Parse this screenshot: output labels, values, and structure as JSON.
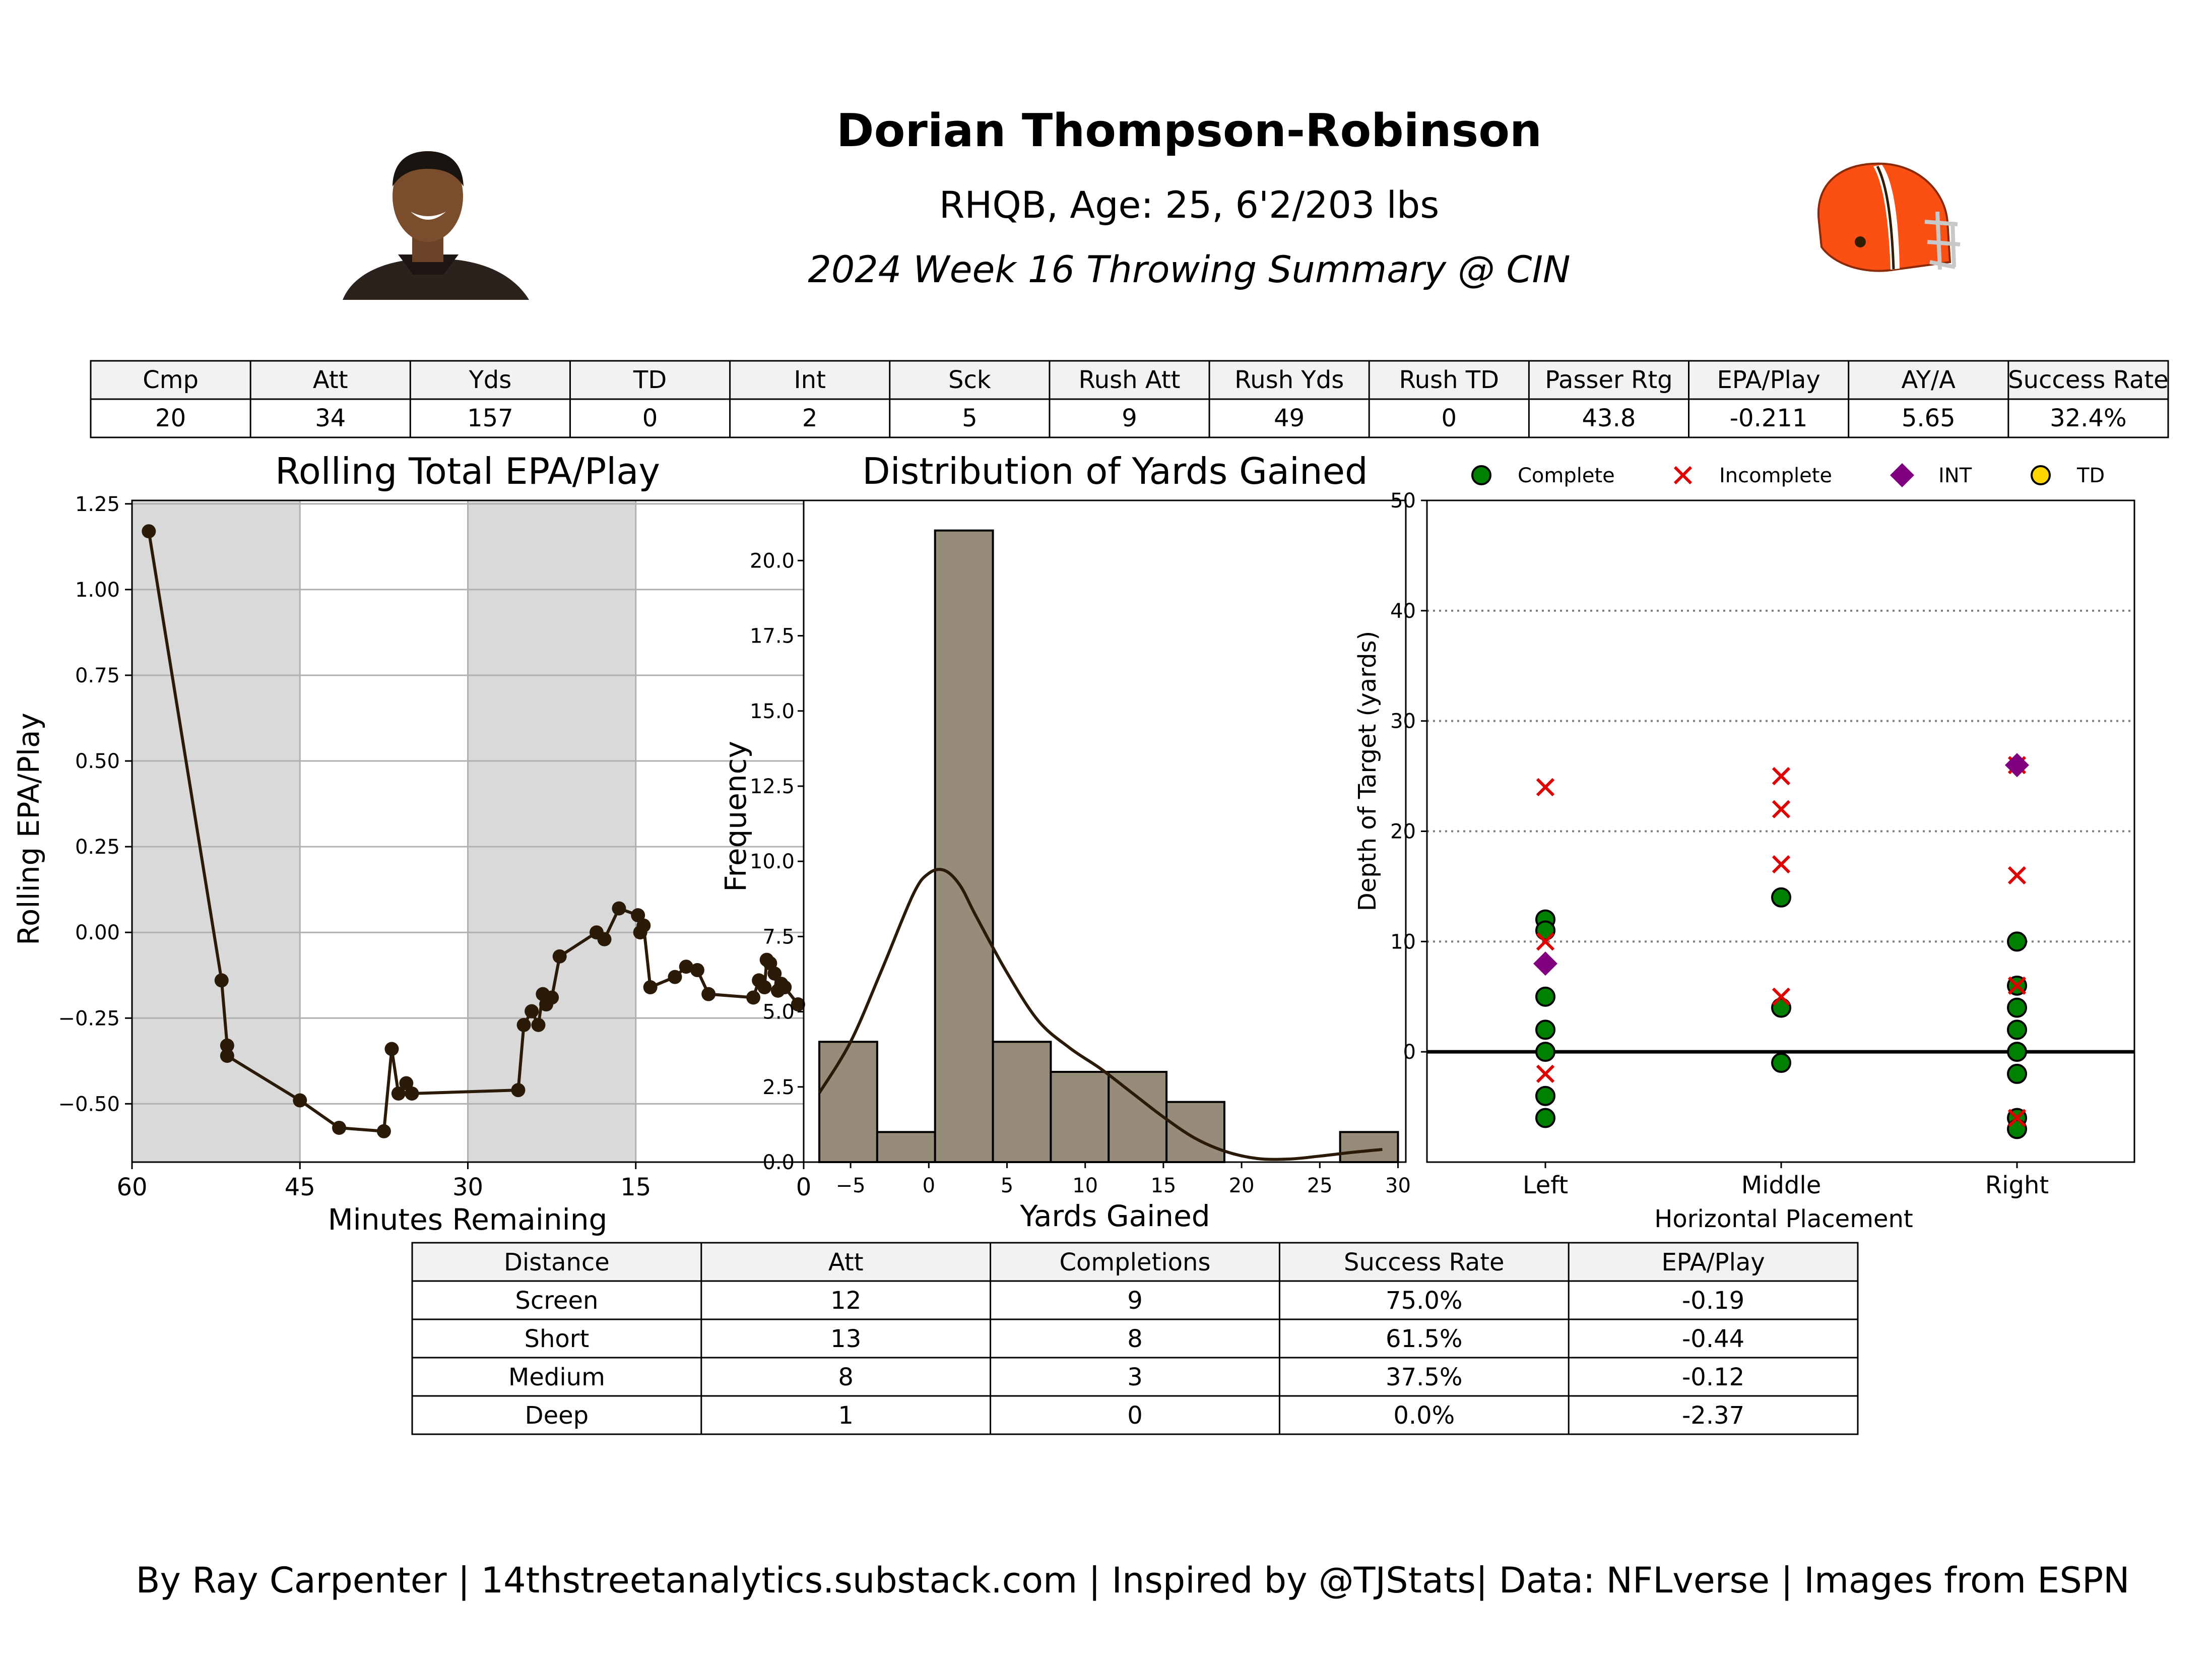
{
  "header": {
    "name": "Dorian Thompson-Robinson",
    "bio": "RHQB, Age: 25, 6'2/203 lbs",
    "subtitle": "2024 Week 16 Throwing Summary @ CIN"
  },
  "stats_table": {
    "headers": [
      "Cmp",
      "Att",
      "Yds",
      "TD",
      "Int",
      "Sck",
      "Rush Att",
      "Rush Yds",
      "Rush TD",
      "Passer Rtg",
      "EPA/Play",
      "AY/A",
      "Success Rate"
    ],
    "values": [
      "20",
      "34",
      "157",
      "0",
      "2",
      "5",
      "9",
      "49",
      "0",
      "43.8",
      "-0.211",
      "5.65",
      "32.4%"
    ]
  },
  "distance_table": {
    "headers": [
      "Distance",
      "Att",
      "Completions",
      "Success Rate",
      "EPA/Play"
    ],
    "rows": [
      [
        "Screen",
        "12",
        "9",
        "75.0%",
        "-0.19"
      ],
      [
        "Short",
        "13",
        "8",
        "61.5%",
        "-0.44"
      ],
      [
        "Medium",
        "8",
        "3",
        "37.5%",
        "-0.12"
      ],
      [
        "Deep",
        "1",
        "0",
        "0.0%",
        "-2.37"
      ]
    ]
  },
  "footer": "By Ray Carpenter | 14thstreetanalytics.substack.com | Inspired by @TJStats| Data: NFLverse | Images from ESPN",
  "colors": {
    "line": "#2b1a08",
    "hist": "#978b7a",
    "complete": "#008000",
    "incomplete": "#e00000",
    "int": "#800080",
    "td": "#ffd700",
    "shade": "#d9d9d9",
    "helmet": "#fb4f14"
  },
  "chart_data": [
    {
      "type": "line",
      "title": "Rolling Total EPA/Play",
      "xlabel": "Minutes Remaining",
      "ylabel": "Rolling EPA/Play",
      "xlim": [
        60,
        0
      ],
      "ylim": [
        -0.67,
        1.26
      ],
      "xticks": [
        60,
        45,
        30,
        15,
        0
      ],
      "yticks": [
        1.25,
        1.0,
        0.75,
        0.5,
        0.25,
        0.0,
        -0.25,
        -0.5
      ],
      "ytick_labels": [
        "1.25",
        "1.00",
        "0.75",
        "0.50",
        "0.25",
        "0.00",
        "−0.25",
        "−0.50"
      ],
      "shaded_quarters": [
        [
          60,
          45
        ],
        [
          30,
          15
        ]
      ],
      "x": [
        58.5,
        52,
        51.5,
        51.5,
        45,
        41.5,
        37.5,
        36.8,
        36.2,
        35.5,
        35.0,
        25.5,
        25,
        24.3,
        23.7,
        23.3,
        23.0,
        22.5,
        21.8,
        18.5,
        17.8,
        16.5,
        14.8,
        14.6,
        14.3,
        13.7,
        11.5,
        10.5,
        9.5,
        8.5,
        4.5,
        4.0,
        3.5,
        3.3,
        3.0,
        2.6,
        2.3,
        2.0,
        1.7,
        0.5
      ],
      "y": [
        1.17,
        -0.14,
        -0.33,
        -0.36,
        -0.49,
        -0.57,
        -0.58,
        -0.34,
        -0.47,
        -0.44,
        -0.47,
        -0.46,
        -0.27,
        -0.23,
        -0.27,
        -0.18,
        -0.21,
        -0.19,
        -0.07,
        0.0,
        -0.02,
        0.07,
        0.05,
        0.0,
        0.02,
        -0.16,
        -0.13,
        -0.1,
        -0.11,
        -0.18,
        -0.19,
        -0.14,
        -0.16,
        -0.08,
        -0.09,
        -0.12,
        -0.17,
        -0.15,
        -0.16,
        -0.21
      ]
    },
    {
      "type": "bar",
      "title": "Distribution of Yards Gained",
      "xlabel": "Yards Gained",
      "ylabel": "Frequency",
      "xlim": [
        -8,
        30.5
      ],
      "ylim": [
        0,
        22
      ],
      "xticks": [
        -5,
        0,
        5,
        10,
        15,
        20,
        25,
        30
      ],
      "xtick_labels": [
        "−5",
        "0",
        "5",
        "10",
        "15",
        "20",
        "25",
        "30"
      ],
      "yticks": [
        0.0,
        2.5,
        5.0,
        7.5,
        10.0,
        12.5,
        15.0,
        17.5,
        20.0
      ],
      "bins": [
        [
          -7,
          -3.3
        ],
        [
          -3.3,
          0.4
        ],
        [
          0.4,
          4.1
        ],
        [
          4.1,
          7.8
        ],
        [
          7.8,
          11.5
        ],
        [
          11.5,
          15.2
        ],
        [
          15.2,
          18.9
        ],
        [
          18.9,
          22.6
        ],
        [
          22.6,
          26.3
        ],
        [
          26.3,
          30
        ]
      ],
      "values": [
        4,
        1,
        21,
        4,
        3,
        3,
        2,
        0,
        0,
        1
      ],
      "kde_x": [
        -7,
        -5,
        -3,
        -1,
        0,
        1,
        2,
        3,
        5,
        7,
        9,
        11,
        13,
        15,
        17,
        19,
        21,
        23,
        25,
        27,
        29
      ],
      "kde_y": [
        2.3,
        4.0,
        6.4,
        8.9,
        9.6,
        9.7,
        9.2,
        8.2,
        6.3,
        4.7,
        3.8,
        3.1,
        2.3,
        1.5,
        0.8,
        0.35,
        0.12,
        0.1,
        0.2,
        0.32,
        0.42
      ]
    },
    {
      "type": "scatter",
      "xlabel": "Horizontal Placement",
      "ylabel": "Depth of Target (yards)",
      "categories": [
        "Left",
        "Middle",
        "Right"
      ],
      "ylim": [
        -10,
        50
      ],
      "yticks": [
        0,
        10,
        20,
        30,
        40,
        50
      ],
      "legend": {
        "position": "top",
        "entries": [
          "Complete",
          "Incomplete",
          "INT",
          "TD"
        ]
      },
      "series": [
        {
          "name": "Complete",
          "points": [
            [
              "Left",
              12
            ],
            [
              "Left",
              11
            ],
            [
              "Left",
              5
            ],
            [
              "Left",
              2
            ],
            [
              "Left",
              0
            ],
            [
              "Left",
              -4
            ],
            [
              "Left",
              -6
            ],
            [
              "Middle",
              14
            ],
            [
              "Middle",
              4
            ],
            [
              "Middle",
              -1
            ],
            [
              "Right",
              10
            ],
            [
              "Right",
              6
            ],
            [
              "Right",
              4
            ],
            [
              "Right",
              2
            ],
            [
              "Right",
              0
            ],
            [
              "Right",
              -2
            ],
            [
              "Right",
              -6
            ],
            [
              "Right",
              -7
            ]
          ]
        },
        {
          "name": "Incomplete",
          "points": [
            [
              "Left",
              24
            ],
            [
              "Left",
              10
            ],
            [
              "Left",
              -2
            ],
            [
              "Middle",
              25
            ],
            [
              "Middle",
              22
            ],
            [
              "Middle",
              17
            ],
            [
              "Middle",
              5
            ],
            [
              "Right",
              26
            ],
            [
              "Right",
              16
            ],
            [
              "Right",
              6
            ],
            [
              "Right",
              -6
            ]
          ]
        },
        {
          "name": "INT",
          "points": [
            [
              "Left",
              8
            ],
            [
              "Right",
              26
            ]
          ]
        },
        {
          "name": "TD",
          "points": []
        }
      ]
    }
  ]
}
